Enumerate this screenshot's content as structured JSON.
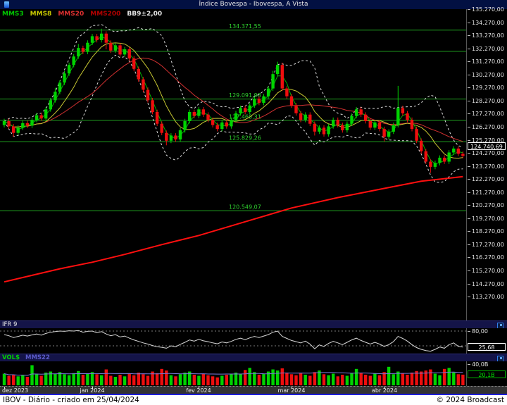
{
  "title_bar": {
    "title": "Índice Bovespa - Ibovespa, A Vista"
  },
  "legend": {
    "items": [
      {
        "label": "MMS3",
        "color": "#00c800"
      },
      {
        "label": "MMS8",
        "color": "#c8c800"
      },
      {
        "label": "MMS20",
        "color": "#e03030"
      },
      {
        "label": "MMS200",
        "color": "#b40000"
      },
      {
        "label": "BB9±2,00",
        "color": "#e8e8e8"
      }
    ]
  },
  "main_axis": {
    "tick_values": [
      135270,
      134270,
      133270,
      132270,
      131270,
      130270,
      129270,
      128270,
      127270,
      126270,
      125270,
      124270,
      123270,
      122270,
      121270,
      120270,
      119270,
      118270,
      117270,
      116270,
      115270,
      114270,
      113270
    ],
    "last_price_label": "124.740,69",
    "last_price": 124740.69
  },
  "ifr_panel": {
    "title": "IFR 9",
    "level_label": "80,00",
    "level_value": 80,
    "lower_level": 30,
    "current_label": "25,68",
    "current": 25.68
  },
  "vol_panel": {
    "title": "VOL$",
    "ma_label": "MMS22",
    "axis_label": "40,0B",
    "axis_value": 40,
    "current_label": "20,1B",
    "current": 20.1
  },
  "status_bar": {
    "left": "IBOV - Diário - criado em 25/04/2024",
    "right": "© 2024 Broadcast"
  },
  "chart_data": [
    {
      "type": "candlestick",
      "title": "Índice Bovespa - Ibovespa, A Vista",
      "timeframe": "Diário",
      "ylim": [
        113270,
        135270
      ],
      "overlays": [
        "MMS3",
        "MMS8",
        "MMS20",
        "MMS200",
        "BB9±2,00"
      ],
      "first_open": 127100,
      "closes": [
        127400,
        127000,
        126500,
        126900,
        127250,
        127050,
        127500,
        127850,
        127600,
        128300,
        129000,
        129650,
        130350,
        131050,
        131700,
        132350,
        133000,
        132700,
        133400,
        133900,
        133600,
        134100,
        133400,
        132800,
        133200,
        132500,
        132900,
        132200,
        131400,
        130600,
        129800,
        129000,
        128100,
        127200,
        126500,
        125900,
        126300,
        126000,
        126700,
        127400,
        128100,
        127800,
        128300,
        127900,
        127500,
        127100,
        126800,
        127300,
        127000,
        127500,
        128000,
        128400,
        128100,
        128600,
        129100,
        128800,
        129300,
        129900,
        131000,
        131700,
        129900,
        129300,
        128600,
        128000,
        127500,
        127900,
        127200,
        126600,
        126900,
        126400,
        127000,
        127500,
        127100,
        126700,
        127200,
        127800,
        128300,
        127900,
        127400,
        126900,
        127300,
        126800,
        126200,
        126600,
        127100,
        128400,
        128000,
        127500,
        126800,
        125900,
        125100,
        124300,
        123900,
        124200,
        124600,
        124300,
        125000,
        125300,
        124900,
        124740.69
      ],
      "wick_default": 180,
      "wick_high_overrides": {
        "11": 300,
        "16": 300,
        "21": 370,
        "58": 250,
        "59": 250,
        "85": 1700
      },
      "wick_low_overrides": {
        "2": 300,
        "22": 500,
        "35": 350,
        "67": 300,
        "82": 350,
        "92": 450
      },
      "support_lines": [
        {
          "value": 134371.55,
          "label": "134.371,55"
        },
        {
          "value": 132740,
          "label": ""
        },
        {
          "value": 129091.98,
          "label": "129.091,98"
        },
        {
          "value": 127460.31,
          "label": "127.460,31"
        },
        {
          "value": 125829.26,
          "label": "125.829,26"
        },
        {
          "value": 120549.07,
          "label": "120.549,07"
        }
      ],
      "mms200_points": [
        [
          0,
          115100
        ],
        [
          6,
          115600
        ],
        [
          12,
          116100
        ],
        [
          19,
          116600
        ],
        [
          26,
          117200
        ],
        [
          34,
          117950
        ],
        [
          42,
          118650
        ],
        [
          52,
          119700
        ],
        [
          62,
          120750
        ],
        [
          72,
          121550
        ],
        [
          82,
          122250
        ],
        [
          90,
          122800
        ],
        [
          99,
          123150
        ]
      ],
      "months": [
        {
          "label": "dez 2023",
          "index": 0
        },
        {
          "label": "jan 2024",
          "index": 19
        },
        {
          "label": "fev 2024",
          "index": 42
        },
        {
          "label": "mar 2024",
          "index": 62
        },
        {
          "label": "abr 2024",
          "index": 82
        }
      ],
      "colors": {
        "up": "#00d400",
        "down": "#ee0e0e",
        "support": "#1fa11f",
        "support_label": "#2fd32f",
        "mms3": "#00b400",
        "mms8": "#c8c832",
        "mms20": "#d03030",
        "mms200": "#ff0f0f",
        "bb": "#dcdcdc"
      }
    },
    {
      "type": "line",
      "name": "IFR 9",
      "ylim": [
        0,
        100
      ],
      "levels": [
        80,
        30
      ],
      "current": 25.68,
      "values": [
        68,
        64,
        58,
        62,
        66,
        63,
        67,
        70,
        66,
        72,
        76,
        78,
        80,
        79,
        81,
        80,
        82,
        76,
        79,
        80,
        74,
        78,
        70,
        64,
        68,
        60,
        63,
        56,
        50,
        45,
        40,
        36,
        31,
        27,
        25,
        22,
        30,
        27,
        35,
        42,
        50,
        46,
        52,
        47,
        44,
        40,
        37,
        43,
        40,
        45,
        52,
        56,
        51,
        57,
        62,
        58,
        63,
        68,
        76,
        80,
        62,
        55,
        48,
        44,
        40,
        46,
        36,
        20,
        33,
        28,
        38,
        45,
        40,
        34,
        42,
        50,
        56,
        48,
        42,
        36,
        42,
        36,
        28,
        34,
        44,
        62,
        55,
        46,
        34,
        24,
        18,
        14,
        12,
        18,
        26,
        22,
        34,
        40,
        28,
        25.68
      ],
      "line_color": "#d8d8d8"
    },
    {
      "type": "bar",
      "name": "VOL$ (bilhões)",
      "axis_tick": 40,
      "ma_window": 22,
      "current": 20.1,
      "values": [
        22,
        18,
        20,
        17,
        19,
        16,
        38,
        21,
        18,
        24,
        26,
        22,
        25,
        21,
        19,
        23,
        27,
        20,
        22,
        25,
        21,
        19,
        30,
        18,
        16,
        20,
        17,
        22,
        19,
        24,
        21,
        18,
        26,
        23,
        31,
        28,
        19,
        17,
        21,
        24,
        26,
        20,
        18,
        22,
        19,
        17,
        15,
        18,
        20,
        22,
        24,
        21,
        29,
        33,
        25,
        20,
        22,
        26,
        30,
        28,
        32,
        24,
        21,
        19,
        23,
        20,
        18,
        25,
        28,
        21,
        19,
        22,
        17,
        20,
        18,
        23,
        31,
        24,
        20,
        18,
        22,
        19,
        25,
        35,
        21,
        26,
        23,
        20,
        24,
        27,
        26,
        28,
        30,
        22,
        19,
        31,
        33,
        24,
        21,
        20.1
      ],
      "ma_color": "#7878d8"
    }
  ]
}
